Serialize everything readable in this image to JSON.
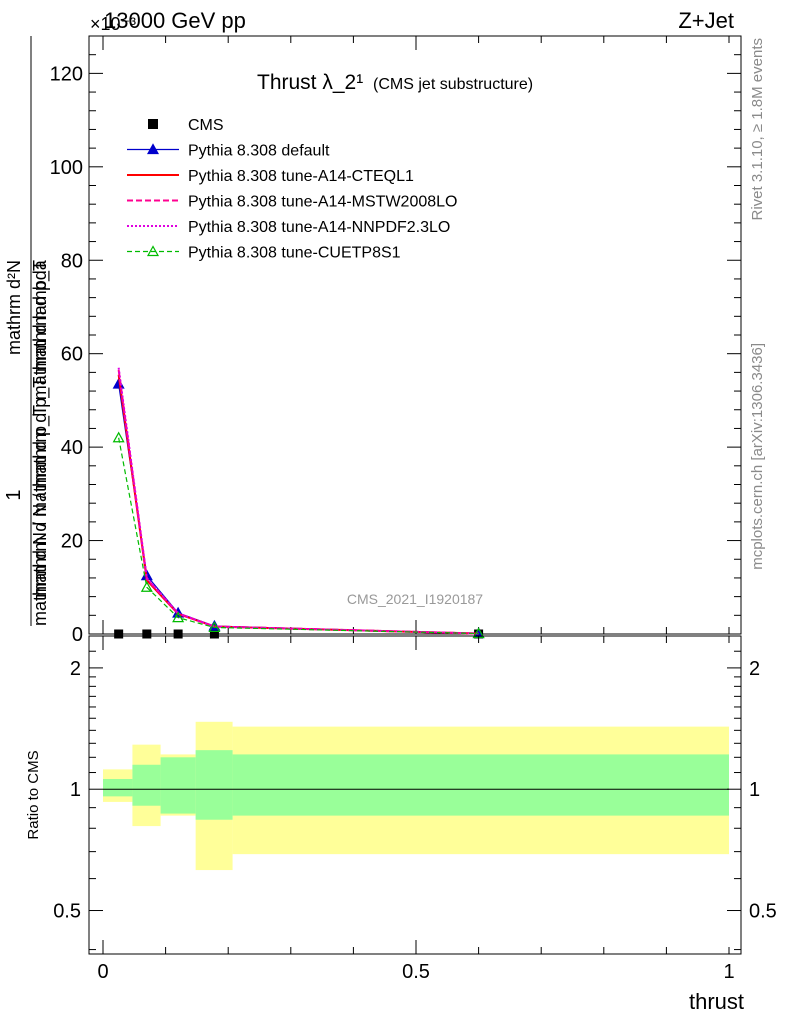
{
  "header": {
    "left": "13000 GeV pp",
    "right": "Z+Jet",
    "exponent": "×10⁻³"
  },
  "side_labels": {
    "rivet": "Rivet 3.1.10, ≥ 1.8M events",
    "mcplots": "mcplots.cern.ch [arXiv:1306.3436]"
  },
  "watermark": "CMS_2021_I1920187",
  "colors": {
    "cms": "#000000",
    "default": "#0000cc",
    "cteql1": "#ff0000",
    "mstw": "#ff0090",
    "nnpdf": "#e000e0",
    "cuetp": "#00bb00",
    "band_inner": "#99ff99",
    "band_outer": "#ffff99"
  },
  "chart_data": [
    {
      "type": "line",
      "title": "Thrust λ_2¹",
      "subtitle": "(CMS jet substructure)",
      "ylabel_top": "1",
      "ylabel_mid": "mathrm d N / mathrm d p_T mathrm d lambda",
      "ylabel_bot": "mathrm d N / mathrm d p_T mathrm d p_T",
      "ylabel_extra": "mathrm d²N",
      "xlim": [
        0,
        1
      ],
      "ylim": [
        0,
        128
      ],
      "y_scale_note": "×10⁻³",
      "yticks": [
        0,
        20,
        40,
        60,
        80,
        100,
        120
      ],
      "legend_position": "top-left",
      "series": [
        {
          "key": "cms",
          "name": "CMS",
          "style": "square",
          "x": [
            0.025,
            0.07,
            0.12,
            0.178,
            0.6
          ],
          "y": [
            0.0,
            0.0,
            0.0,
            0.0,
            0.0
          ]
        },
        {
          "key": "default",
          "name": "Pythia 8.308 default",
          "style": "solid-triangle",
          "x": [
            0.025,
            0.07,
            0.12,
            0.178,
            0.6
          ],
          "y": [
            53.5,
            12.5,
            4.5,
            1.7,
            0.1
          ]
        },
        {
          "key": "cteql1",
          "name": "Pythia 8.308 tune-A14-CTEQL1",
          "style": "solid",
          "x": [
            0.025,
            0.07,
            0.12,
            0.178,
            0.6
          ],
          "y": [
            55.5,
            11.5,
            4.3,
            1.6,
            0.1
          ]
        },
        {
          "key": "mstw",
          "name": "Pythia 8.308 tune-A14-MSTW2008LO",
          "style": "dashed",
          "x": [
            0.025,
            0.07,
            0.12,
            0.178,
            0.6
          ],
          "y": [
            56.5,
            11.8,
            4.4,
            1.6,
            0.1
          ]
        },
        {
          "key": "nnpdf",
          "name": "Pythia 8.308 tune-A14-NNPDF2.3LO",
          "style": "dotted",
          "x": [
            0.025,
            0.07,
            0.12,
            0.178,
            0.6
          ],
          "y": [
            57.0,
            12.0,
            4.4,
            1.6,
            0.1
          ]
        },
        {
          "key": "cuetp",
          "name": "Pythia 8.308 tune-CUETP8S1",
          "style": "dashed-open-triangle",
          "x": [
            0.025,
            0.07,
            0.12,
            0.178,
            0.6
          ],
          "y": [
            42.0,
            10.0,
            3.5,
            1.4,
            0.1
          ]
        }
      ]
    },
    {
      "type": "area",
      "ylabel": "Ratio to CMS",
      "xlabel": "thrust",
      "xlim": [
        0,
        1
      ],
      "ylim": [
        0.39,
        2.4
      ],
      "y_scale": "log",
      "yticks": [
        0.5,
        1,
        2
      ],
      "xticks": [
        0,
        0.5,
        1
      ],
      "reference_line": 1,
      "bins": [
        {
          "lo": 0.0,
          "hi": 0.047,
          "inner": [
            0.96,
            1.06
          ],
          "outer": [
            0.93,
            1.12
          ]
        },
        {
          "lo": 0.047,
          "hi": 0.092,
          "inner": [
            0.91,
            1.15
          ],
          "outer": [
            0.81,
            1.29
          ]
        },
        {
          "lo": 0.092,
          "hi": 0.148,
          "inner": [
            0.87,
            1.2
          ],
          "outer": [
            0.86,
            1.22
          ]
        },
        {
          "lo": 0.148,
          "hi": 0.207,
          "inner": [
            0.84,
            1.25
          ],
          "outer": [
            0.63,
            1.47
          ]
        },
        {
          "lo": 0.207,
          "hi": 1.0,
          "inner": [
            0.86,
            1.22
          ],
          "outer": [
            0.69,
            1.43
          ]
        }
      ]
    }
  ]
}
